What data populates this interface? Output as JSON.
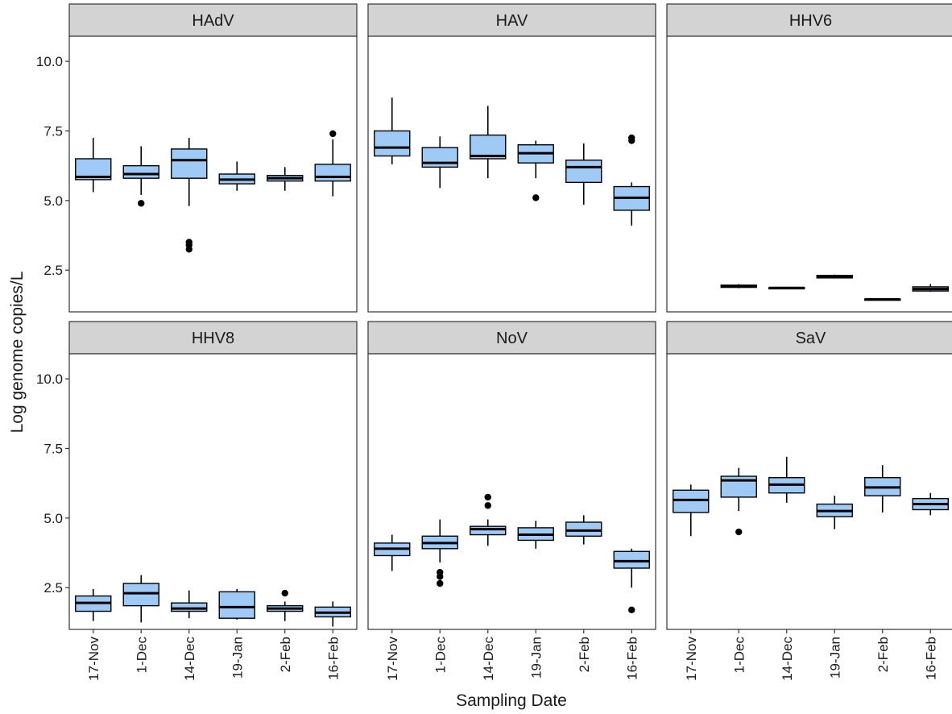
{
  "chart_data": {
    "type": "boxplot",
    "facet_layout": {
      "rows": 2,
      "cols": 3
    },
    "xlabel": "Sampling Date",
    "ylabel": "Log genome copies/L",
    "categories": [
      "17-Nov",
      "1-Dec",
      "14-Dec",
      "19-Jan",
      "2-Feb",
      "16-Feb"
    ],
    "ylim": [
      1.0,
      10.9
    ],
    "yticks": [
      {
        "value": 2.5,
        "label": "2.5"
      },
      {
        "value": 5.0,
        "label": "5.0"
      },
      {
        "value": 7.5,
        "label": "7.5"
      },
      {
        "value": 10.0,
        "label": "10.0"
      }
    ],
    "grid": false,
    "box_fill": "#9ECAF5",
    "box_stroke": "#000000",
    "strip_fill": "#D3D3D3",
    "panels": [
      {
        "name": "HAdV",
        "boxes": [
          {
            "category": "17-Nov",
            "lower": 5.3,
            "q1": 5.75,
            "median": 5.85,
            "q3": 6.5,
            "upper": 7.25,
            "outliers": []
          },
          {
            "category": "1-Dec",
            "lower": 5.2,
            "q1": 5.8,
            "median": 5.95,
            "q3": 6.25,
            "upper": 6.95,
            "outliers": [
              4.9
            ]
          },
          {
            "category": "14-Dec",
            "lower": 4.8,
            "q1": 5.8,
            "median": 6.45,
            "q3": 6.85,
            "upper": 7.25,
            "outliers": [
              3.25,
              3.4,
              3.5
            ]
          },
          {
            "category": "19-Jan",
            "lower": 5.35,
            "q1": 5.6,
            "median": 5.75,
            "q3": 5.95,
            "upper": 6.4,
            "outliers": []
          },
          {
            "category": "2-Feb",
            "lower": 5.35,
            "q1": 5.7,
            "median": 5.8,
            "q3": 5.9,
            "upper": 6.2,
            "outliers": []
          },
          {
            "category": "16-Feb",
            "lower": 5.15,
            "q1": 5.7,
            "median": 5.85,
            "q3": 6.3,
            "upper": 7.2,
            "outliers": [
              7.4
            ]
          }
        ]
      },
      {
        "name": "HAV",
        "boxes": [
          {
            "category": "17-Nov",
            "lower": 6.3,
            "q1": 6.6,
            "median": 6.9,
            "q3": 7.5,
            "upper": 8.7,
            "outliers": []
          },
          {
            "category": "1-Dec",
            "lower": 5.45,
            "q1": 6.2,
            "median": 6.35,
            "q3": 6.9,
            "upper": 7.3,
            "outliers": []
          },
          {
            "category": "14-Dec",
            "lower": 5.8,
            "q1": 6.5,
            "median": 6.6,
            "q3": 7.35,
            "upper": 8.4,
            "outliers": []
          },
          {
            "category": "19-Jan",
            "lower": 5.8,
            "q1": 6.35,
            "median": 6.7,
            "q3": 7.0,
            "upper": 7.15,
            "outliers": [
              5.1
            ]
          },
          {
            "category": "2-Feb",
            "lower": 4.85,
            "q1": 5.65,
            "median": 6.2,
            "q3": 6.45,
            "upper": 7.05,
            "outliers": []
          },
          {
            "category": "16-Feb",
            "lower": 4.1,
            "q1": 4.65,
            "median": 5.1,
            "q3": 5.5,
            "upper": 5.65,
            "outliers": [
              7.15,
              7.25
            ]
          }
        ]
      },
      {
        "name": "HHV6",
        "boxes": [
          {
            "category": "1-Dec",
            "lower": 1.85,
            "q1": 1.88,
            "median": 1.92,
            "q3": 1.96,
            "upper": 2.0,
            "outliers": []
          },
          {
            "category": "14-Dec",
            "lower": 1.84,
            "q1": 1.85,
            "median": 1.86,
            "q3": 1.87,
            "upper": 1.88,
            "outliers": []
          },
          {
            "category": "19-Jan",
            "lower": 2.2,
            "q1": 2.22,
            "median": 2.27,
            "q3": 2.31,
            "upper": 2.34,
            "outliers": []
          },
          {
            "category": "2-Feb",
            "lower": 1.43,
            "q1": 1.44,
            "median": 1.45,
            "q3": 1.46,
            "upper": 1.47,
            "outliers": []
          },
          {
            "category": "16-Feb",
            "lower": 1.72,
            "q1": 1.75,
            "median": 1.82,
            "q3": 1.9,
            "upper": 2.0,
            "outliers": []
          }
        ]
      },
      {
        "name": "HHV8",
        "boxes": [
          {
            "category": "17-Nov",
            "lower": 1.3,
            "q1": 1.65,
            "median": 1.95,
            "q3": 2.2,
            "upper": 2.45,
            "outliers": []
          },
          {
            "category": "1-Dec",
            "lower": 1.25,
            "q1": 1.85,
            "median": 2.3,
            "q3": 2.65,
            "upper": 2.95,
            "outliers": []
          },
          {
            "category": "14-Dec",
            "lower": 1.4,
            "q1": 1.65,
            "median": 1.75,
            "q3": 1.95,
            "upper": 2.4,
            "outliers": []
          },
          {
            "category": "19-Jan",
            "lower": 1.35,
            "q1": 1.4,
            "median": 1.8,
            "q3": 2.35,
            "upper": 2.45,
            "outliers": []
          },
          {
            "category": "2-Feb",
            "lower": 1.3,
            "q1": 1.65,
            "median": 1.75,
            "q3": 1.85,
            "upper": 2.0,
            "outliers": [
              2.3
            ]
          },
          {
            "category": "16-Feb",
            "lower": 1.1,
            "q1": 1.45,
            "median": 1.6,
            "q3": 1.8,
            "upper": 2.0,
            "outliers": []
          }
        ]
      },
      {
        "name": "NoV",
        "boxes": [
          {
            "category": "17-Nov",
            "lower": 3.1,
            "q1": 3.65,
            "median": 3.9,
            "q3": 4.1,
            "upper": 4.4,
            "outliers": []
          },
          {
            "category": "1-Dec",
            "lower": 3.4,
            "q1": 3.9,
            "median": 4.1,
            "q3": 4.35,
            "upper": 4.95,
            "outliers": [
              2.65,
              2.9,
              3.05
            ]
          },
          {
            "category": "14-Dec",
            "lower": 4.0,
            "q1": 4.4,
            "median": 4.6,
            "q3": 4.7,
            "upper": 4.95,
            "outliers": [
              5.45,
              5.75
            ]
          },
          {
            "category": "19-Jan",
            "lower": 3.9,
            "q1": 4.2,
            "median": 4.4,
            "q3": 4.65,
            "upper": 4.9,
            "outliers": []
          },
          {
            "category": "2-Feb",
            "lower": 4.05,
            "q1": 4.35,
            "median": 4.55,
            "q3": 4.85,
            "upper": 5.1,
            "outliers": []
          },
          {
            "category": "16-Feb",
            "lower": 2.5,
            "q1": 3.2,
            "median": 3.45,
            "q3": 3.8,
            "upper": 3.9,
            "outliers": [
              1.7
            ]
          }
        ]
      },
      {
        "name": "SaV",
        "boxes": [
          {
            "category": "17-Nov",
            "lower": 4.35,
            "q1": 5.2,
            "median": 5.65,
            "q3": 6.0,
            "upper": 6.2,
            "outliers": []
          },
          {
            "category": "1-Dec",
            "lower": 5.25,
            "q1": 5.75,
            "median": 6.35,
            "q3": 6.5,
            "upper": 6.8,
            "outliers": [
              4.5
            ]
          },
          {
            "category": "14-Dec",
            "lower": 5.55,
            "q1": 5.9,
            "median": 6.2,
            "q3": 6.45,
            "upper": 7.2,
            "outliers": []
          },
          {
            "category": "19-Jan",
            "lower": 4.6,
            "q1": 5.05,
            "median": 5.25,
            "q3": 5.5,
            "upper": 5.8,
            "outliers": []
          },
          {
            "category": "2-Feb",
            "lower": 5.2,
            "q1": 5.8,
            "median": 6.1,
            "q3": 6.45,
            "upper": 6.9,
            "outliers": []
          },
          {
            "category": "16-Feb",
            "lower": 5.1,
            "q1": 5.3,
            "median": 5.5,
            "q3": 5.7,
            "upper": 5.9,
            "outliers": []
          }
        ]
      }
    ]
  }
}
